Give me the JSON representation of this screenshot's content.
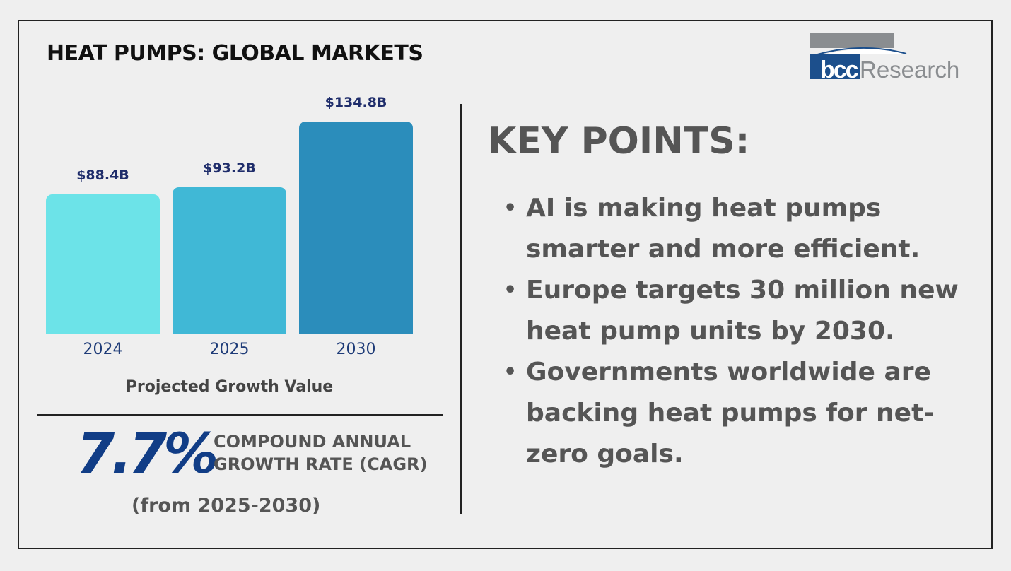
{
  "title": "HEAT PUMPS: GLOBAL MARKETS",
  "logo": {
    "text_bold": "bcc",
    "text": "Research"
  },
  "chart_data": {
    "type": "bar",
    "title": "",
    "xlabel": "Projected Growth Value",
    "ylabel": "",
    "categories": [
      "2024",
      "2025",
      "2030"
    ],
    "values": [
      88.4,
      93.2,
      134.8
    ],
    "value_labels": [
      "$88.4B",
      "$93.2B",
      "$134.8B"
    ],
    "units": "USD billions",
    "ylim": [
      0,
      134.8
    ],
    "grid": false,
    "colors": [
      "#6ce3e8",
      "#40b8d6",
      "#2b8dbb"
    ]
  },
  "cagr": {
    "value": "7.7%",
    "label_line1": "COMPOUND ANNUAL",
    "label_line2": "GROWTH RATE (CAGR)",
    "period": "(from 2025-2030)"
  },
  "key_points": {
    "heading": "KEY POINTS:",
    "bullet": "•",
    "items": [
      "AI is making heat pumps smarter and more efficient.",
      "Europe targets 30 million new heat pump units by 2030.",
      "Governments worldwide are backing heat pumps for net-zero goals."
    ]
  }
}
